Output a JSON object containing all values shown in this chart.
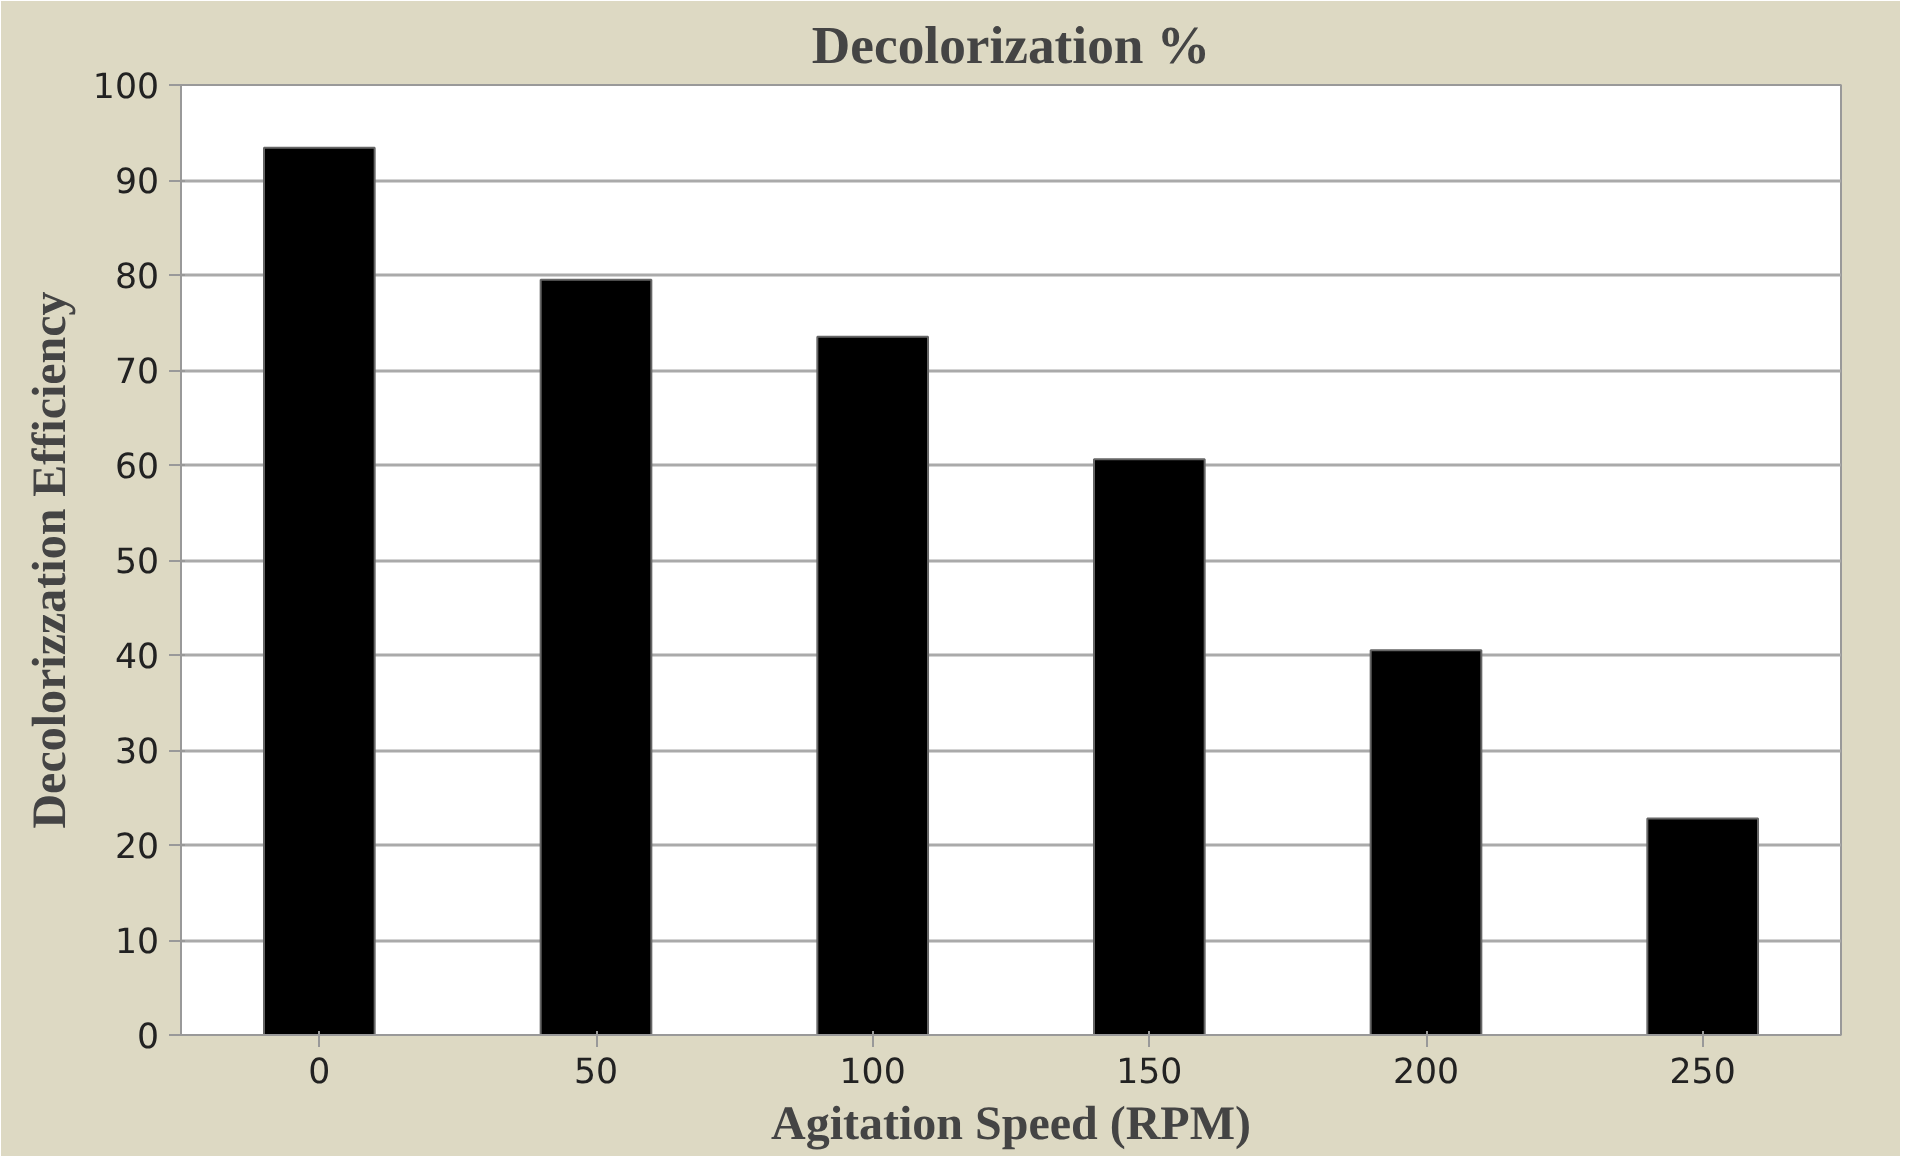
{
  "chart_data": {
    "type": "bar",
    "title": "Decolorization %",
    "xlabel": "Agitation Speed (RPM)",
    "ylabel": "Decolorizzation Efficiency",
    "categories": [
      "0",
      "50",
      "100",
      "150",
      "200",
      "250"
    ],
    "values": [
      93.4,
      79.5,
      73.5,
      60.6,
      40.5,
      22.8
    ],
    "color": "#000000",
    "ylim": [
      0,
      100
    ],
    "yticks": [
      0,
      10,
      20,
      30,
      40,
      50,
      60,
      70,
      80,
      90,
      100
    ],
    "grid": "y"
  }
}
